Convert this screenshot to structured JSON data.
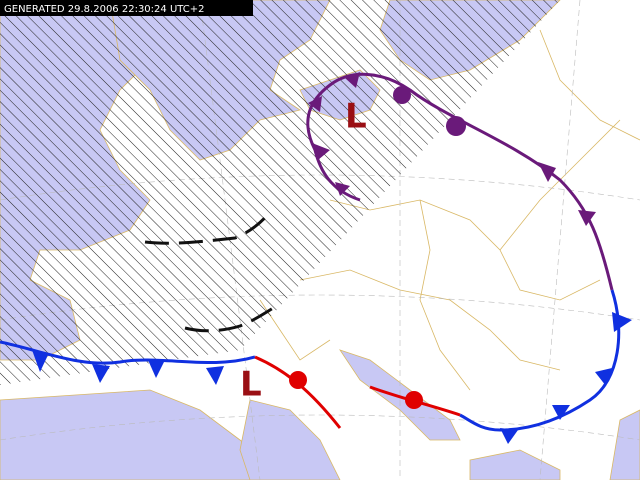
{
  "header": {
    "generated": "GENERATED 29.8.2006 22:30:24 UTC+2"
  },
  "pressure_centers": [
    {
      "label": "L"
    },
    {
      "label": "L"
    }
  ]
}
